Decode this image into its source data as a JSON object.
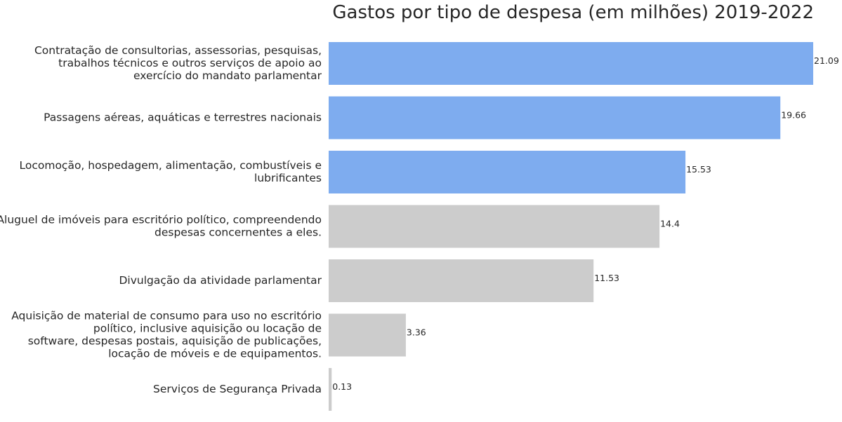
{
  "chart_data": {
    "type": "bar",
    "orientation": "horizontal",
    "title": "Gastos por tipo de despesa (em milhões) 2019-2022",
    "xlabel": "",
    "ylabel": "",
    "grid": false,
    "xlim": [
      0,
      21.09
    ],
    "categories": [
      [
        "Contratação de consultorias, assessorias, pesquisas,",
        "trabalhos técnicos e outros serviços de apoio ao",
        "exercício do mandato parlamentar"
      ],
      [
        "Passagens aéreas, aquáticas e terrestres nacionais"
      ],
      [
        "Locomoção, hospedagem, alimentação, combustíveis e",
        "lubrificantes"
      ],
      [
        "Aluguel de imóveis para escritório político, compreendendo",
        "despesas concernentes a eles."
      ],
      [
        "Divulgação da atividade parlamentar"
      ],
      [
        "Aquisição de material de consumo para uso no escritório",
        "político, inclusive aquisição ou locação de",
        "software, despesas postais, aquisição de publicações,",
        "locação de móveis e de equipamentos."
      ],
      [
        "Serviços de Segurança Privada"
      ]
    ],
    "values": [
      21.09,
      19.66,
      15.53,
      14.4,
      11.53,
      3.36,
      0.13
    ],
    "value_labels": [
      "21.09",
      "19.66",
      "15.53",
      "14.4",
      "11.53",
      "3.36",
      "0.13"
    ],
    "bar_colors": [
      "#7eacef",
      "#7eacef",
      "#7eacef",
      "#cccccc",
      "#cccccc",
      "#cccccc",
      "#cccccc"
    ]
  }
}
